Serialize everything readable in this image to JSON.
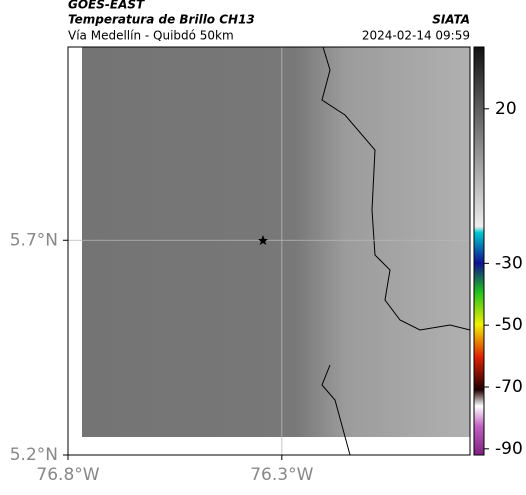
{
  "header": {
    "satellite": "GOES-EAST",
    "product": "Temperatura de Brillo CH13",
    "source": "SIATA",
    "route": "Vía Medellín - Quibdó 50km",
    "timestamp": "2024-02-14 09:59"
  },
  "map": {
    "xlim": [
      -76.8,
      -75.86
    ],
    "ylim": [
      5.2,
      6.15
    ],
    "xticks": [
      {
        "value": -76.8,
        "label": "76.8°W"
      },
      {
        "value": -76.3,
        "label": "76.3°W"
      }
    ],
    "yticks": [
      {
        "value": 5.7,
        "label": "5.7°N"
      },
      {
        "value": 5.2,
        "label": "5.2°N"
      }
    ],
    "grid": true
  },
  "colorbar": {
    "lim": [
      40,
      -92
    ],
    "ticks": [
      20,
      -30,
      -50,
      -70,
      -90
    ]
  }
}
